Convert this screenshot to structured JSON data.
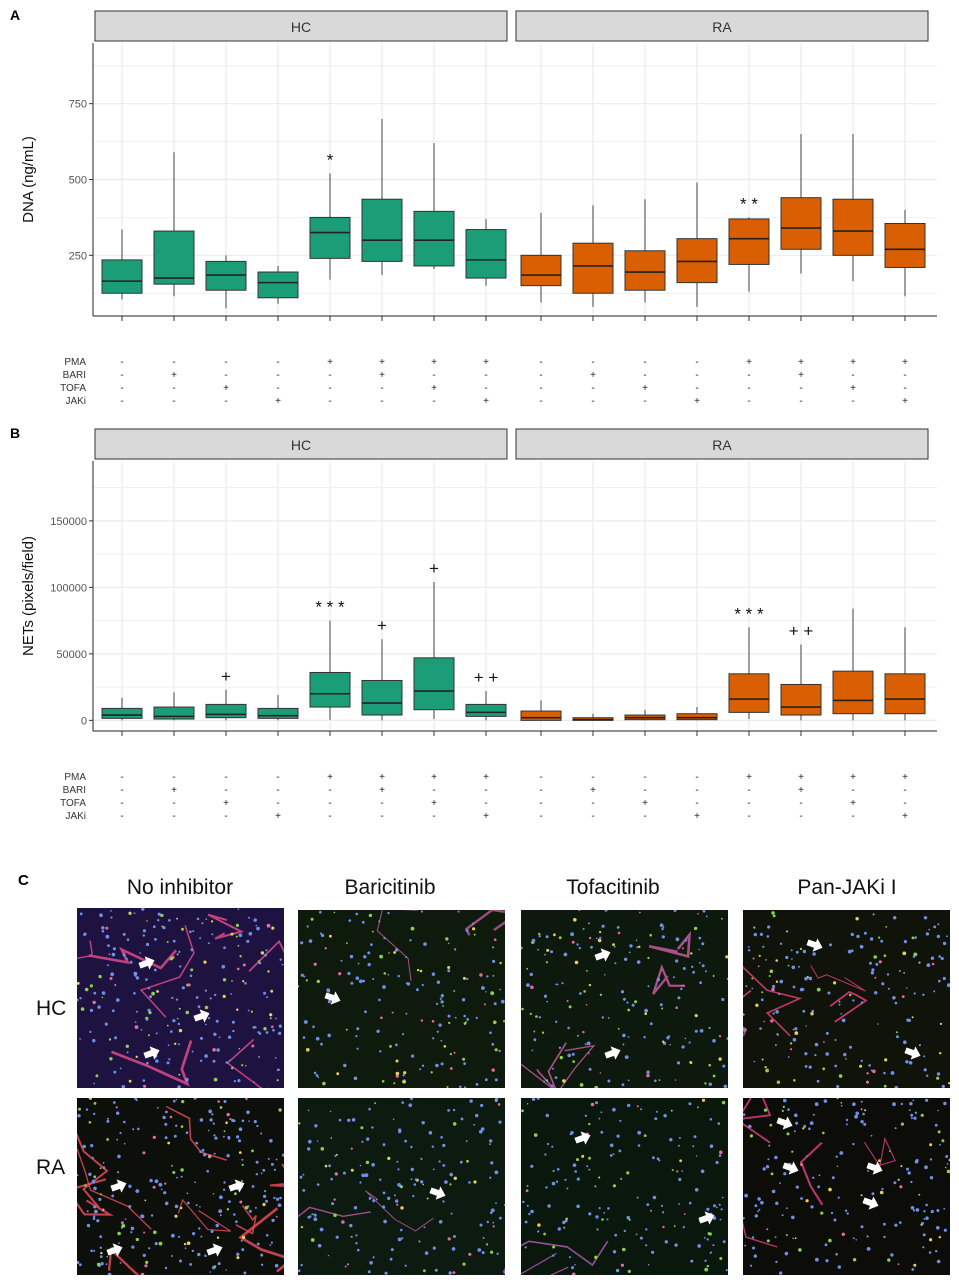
{
  "colors": {
    "HC": "#1b9e77",
    "RA": "#d95f02",
    "strip_fill": "#d9d9d9",
    "grid": "#ebebeb"
  },
  "chart_data": [
    {
      "panel": "A",
      "type": "box",
      "ylabel": "DNA (ng/mL)",
      "ylim": [
        50,
        950
      ],
      "yticks": [
        250,
        500,
        750
      ],
      "grid": true,
      "facets": [
        "HC",
        "RA"
      ],
      "annotations": [
        "*",
        "* *"
      ],
      "series": [
        {
          "name": "HC",
          "boxes": [
            {
              "lo": 105,
              "q1": 125,
              "med": 165,
              "q3": 235,
              "hi": 335
            },
            {
              "lo": 115,
              "q1": 155,
              "med": 175,
              "q3": 330,
              "hi": 590
            },
            {
              "lo": 75,
              "q1": 135,
              "med": 185,
              "q3": 230,
              "hi": 250
            },
            {
              "lo": 90,
              "q1": 110,
              "med": 160,
              "q3": 195,
              "hi": 215
            },
            {
              "lo": 170,
              "q1": 240,
              "med": 325,
              "q3": 375,
              "hi": 520,
              "mark": "*"
            },
            {
              "lo": 185,
              "q1": 230,
              "med": 300,
              "q3": 435,
              "hi": 700
            },
            {
              "lo": 205,
              "q1": 215,
              "med": 300,
              "q3": 395,
              "hi": 620
            },
            {
              "lo": 150,
              "q1": 175,
              "med": 235,
              "q3": 335,
              "hi": 370
            }
          ]
        },
        {
          "name": "RA",
          "boxes": [
            {
              "lo": 95,
              "q1": 150,
              "med": 185,
              "q3": 250,
              "hi": 390
            },
            {
              "lo": 80,
              "q1": 125,
              "med": 215,
              "q3": 290,
              "hi": 415
            },
            {
              "lo": 95,
              "q1": 135,
              "med": 195,
              "q3": 265,
              "hi": 435
            },
            {
              "lo": 80,
              "q1": 160,
              "med": 230,
              "q3": 305,
              "hi": 490
            },
            {
              "lo": 130,
              "q1": 220,
              "med": 305,
              "q3": 370,
              "hi": 375,
              "mark": "* *"
            },
            {
              "lo": 190,
              "q1": 270,
              "med": 340,
              "q3": 440,
              "hi": 650
            },
            {
              "lo": 165,
              "q1": 250,
              "med": 330,
              "q3": 435,
              "hi": 650
            },
            {
              "lo": 115,
              "q1": 210,
              "med": 270,
              "q3": 355,
              "hi": 400
            }
          ]
        }
      ]
    },
    {
      "panel": "B",
      "type": "box",
      "ylabel": "NETs (pixels/field)",
      "ylim": [
        -8000,
        195000
      ],
      "yticks": [
        0,
        50000,
        100000,
        150000
      ],
      "grid": true,
      "facets": [
        "HC",
        "RA"
      ],
      "annotations": [
        "* * *",
        "+",
        "+ +"
      ],
      "series": [
        {
          "name": "HC",
          "boxes": [
            {
              "lo": 0,
              "q1": 1500,
              "med": 4000,
              "q3": 9000,
              "hi": 17000
            },
            {
              "lo": 0,
              "q1": 1000,
              "med": 3000,
              "q3": 10000,
              "hi": 21000
            },
            {
              "lo": 0,
              "q1": 2000,
              "med": 4500,
              "q3": 12000,
              "hi": 23000,
              "mark": "+"
            },
            {
              "lo": 0,
              "q1": 1500,
              "med": 3500,
              "q3": 9000,
              "hi": 19000
            },
            {
              "lo": 500,
              "q1": 10000,
              "med": 20000,
              "q3": 36000,
              "hi": 75000,
              "mark": "* * *"
            },
            {
              "lo": 0,
              "q1": 4000,
              "med": 13000,
              "q3": 30000,
              "hi": 61000,
              "mark": "+"
            },
            {
              "lo": 1000,
              "q1": 8000,
              "med": 22000,
              "q3": 47000,
              "hi": 104000,
              "mark": "+"
            },
            {
              "lo": 0,
              "q1": 3000,
              "med": 6000,
              "q3": 12000,
              "hi": 22000,
              "mark": "+ +"
            }
          ]
        },
        {
          "name": "RA",
          "boxes": [
            {
              "lo": 0,
              "q1": 0,
              "med": 2000,
              "q3": 7000,
              "hi": 15000
            },
            {
              "lo": 0,
              "q1": 0,
              "med": 500,
              "q3": 2000,
              "hi": 5000
            },
            {
              "lo": 0,
              "q1": 500,
              "med": 2000,
              "q3": 4000,
              "hi": 8000
            },
            {
              "lo": 0,
              "q1": 500,
              "med": 2000,
              "q3": 5000,
              "hi": 10000
            },
            {
              "lo": 1000,
              "q1": 6000,
              "med": 16000,
              "q3": 35000,
              "hi": 70000,
              "mark": "* * *"
            },
            {
              "lo": 0,
              "q1": 4000,
              "med": 10000,
              "q3": 27000,
              "hi": 57000,
              "mark": "+ +"
            },
            {
              "lo": 0,
              "q1": 5000,
              "med": 15000,
              "q3": 37000,
              "hi": 84000
            },
            {
              "lo": 0,
              "q1": 5000,
              "med": 16000,
              "q3": 35000,
              "hi": 70000
            }
          ]
        }
      ]
    }
  ],
  "conditions": {
    "rows": [
      "PMA",
      "BARI",
      "TOFA",
      "JAKi"
    ],
    "values": {
      "PMA": [
        "-",
        "-",
        "-",
        "-",
        "+",
        "+",
        "+",
        "+",
        "-",
        "-",
        "-",
        "-",
        "+",
        "+",
        "+",
        "+"
      ],
      "BARI": [
        "-",
        "+",
        "-",
        "-",
        "-",
        "+",
        "-",
        "-",
        "-",
        "+",
        "-",
        "-",
        "-",
        "+",
        "-",
        "-"
      ],
      "TOFA": [
        "-",
        "-",
        "+",
        "-",
        "-",
        "-",
        "+",
        "-",
        "-",
        "-",
        "+",
        "-",
        "-",
        "-",
        "+",
        "-"
      ],
      "JAKi": [
        "-",
        "-",
        "-",
        "+",
        "-",
        "-",
        "-",
        "+",
        "-",
        "-",
        "-",
        "+",
        "-",
        "-",
        "-",
        "+"
      ]
    }
  },
  "panel_c": {
    "letter": "C",
    "columns": [
      "No inhibitor",
      "Baricitinib",
      "Tofacitinib",
      "Pan-JAKi I"
    ],
    "rows": [
      "HC",
      "RA"
    ]
  },
  "panel_letters": {
    "a": "A",
    "b": "B"
  }
}
